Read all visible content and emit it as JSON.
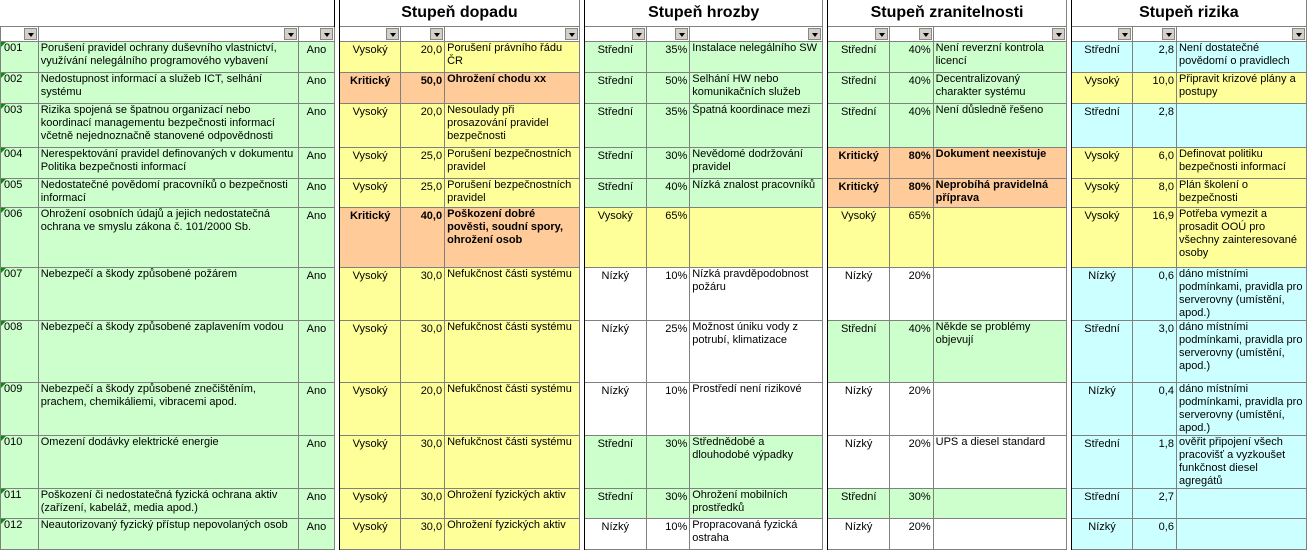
{
  "groups": {
    "dopad": "Stupeň dopadu",
    "hrozba": "Stupeň hrozby",
    "zranitelnost": "Stupeň zranitelnosti",
    "riziko": "Stupeň rizika"
  },
  "colors": {
    "green": "#ccffcc",
    "yellow": "#ffff99",
    "orange": "#ffcc99",
    "white": "#ffffff",
    "cyan": "#ccffff",
    "grid": "#808080",
    "filter_button": "#d4d0c8"
  },
  "rows": [
    {
      "id": "001",
      "name": "Porušení pravidel ochrany duševního vlastnictví, využívání nelegálního programového vybavení",
      "ano": "Ano",
      "dopad": {
        "lvl": "Vysoký",
        "num": "20,0",
        "desc": "Porušení právního řádu ČR"
      },
      "hrozba": {
        "lvl": "Střední",
        "pct": "35%",
        "desc": "Instalace nelegálního SW"
      },
      "zran": {
        "lvl": "Střední",
        "pct": "40%",
        "desc": "Není reverzní kontrola licencí"
      },
      "riziko": {
        "lvl": "Střední",
        "num": "2,8",
        "desc": "Není dostatečné povědomí o pravidlech"
      }
    },
    {
      "id": "002",
      "name": "Nedostupnost informací a služeb ICT, selhání systému",
      "ano": "Ano",
      "dopad": {
        "lvl": "Kritický",
        "num": "50,0",
        "desc": "Ohrožení chodu xx"
      },
      "hrozba": {
        "lvl": "Střední",
        "pct": "50%",
        "desc": "Selhání HW nebo komunikačních služeb"
      },
      "zran": {
        "lvl": "Střední",
        "pct": "40%",
        "desc": "Decentralizovaný charakter systému"
      },
      "riziko": {
        "lvl": "Vysoký",
        "num": "10,0",
        "desc": "Připravit krizové plány a postupy"
      }
    },
    {
      "id": "003",
      "name": "Rizika spojená se špatnou organizací nebo koordinací managementu bezpečnosti informací včetně nejednoznačně stanovené odpovědnosti",
      "ano": "Ano",
      "dopad": {
        "lvl": "Vysoký",
        "num": "20,0",
        "desc": "Nesoulady při prosazování pravidel bezpečnosti"
      },
      "hrozba": {
        "lvl": "Střední",
        "pct": "35%",
        "desc": "Špatná koordinace mezi"
      },
      "zran": {
        "lvl": "Střední",
        "pct": "40%",
        "desc": "Není důsledně řešeno"
      },
      "riziko": {
        "lvl": "Střední",
        "num": "2,8",
        "desc": ""
      }
    },
    {
      "id": "004",
      "name": "Nerespektování pravidel definovaných v dokumentu Politika bezpečnosti informací",
      "ano": "Ano",
      "dopad": {
        "lvl": "Vysoký",
        "num": "25,0",
        "desc": "Porušení bezpečnostních pravidel"
      },
      "hrozba": {
        "lvl": "Střední",
        "pct": "30%",
        "desc": "Nevědomé dodržování pravidel"
      },
      "zran": {
        "lvl": "Kritický",
        "pct": "80%",
        "desc": "Dokument neexistuje"
      },
      "riziko": {
        "lvl": "Vysoký",
        "num": "6,0",
        "desc": "Definovat politiku bezpečnosti informací"
      }
    },
    {
      "id": "005",
      "name": "Nedostatečné povědomí pracovníků o bezpečnosti informací",
      "ano": "Ano",
      "dopad": {
        "lvl": "Vysoký",
        "num": "25,0",
        "desc": "Porušení bezpečnostních pravidel"
      },
      "hrozba": {
        "lvl": "Střední",
        "pct": "40%",
        "desc": "Nízká znalost pracovníků"
      },
      "zran": {
        "lvl": "Kritický",
        "pct": "80%",
        "desc": "Neprobíhá pravidelná příprava"
      },
      "riziko": {
        "lvl": "Vysoký",
        "num": "8,0",
        "desc": "Plán školení o bezpečnosti"
      }
    },
    {
      "id": "006",
      "name": "Ohrožení osobních údajů a jejich nedostatečná ochrana ve smyslu zákona č. 101/2000 Sb.",
      "ano": "Ano",
      "dopad": {
        "lvl": "Kritický",
        "num": "40,0",
        "desc": "Poškození dobré pověsti, soudní spory, ohrožení osob"
      },
      "hrozba": {
        "lvl": "Vysoký",
        "pct": "65%",
        "desc": ""
      },
      "zran": {
        "lvl": "Vysoký",
        "pct": "65%",
        "desc": ""
      },
      "riziko": {
        "lvl": "Vysoký",
        "num": "16,9",
        "desc": "Potřeba vymezit a prosadit OOÚ pro všechny zainteresované osoby"
      }
    },
    {
      "id": "007",
      "name": "Nebezpečí a škody způsobené požárem",
      "ano": "Ano",
      "dopad": {
        "lvl": "Vysoký",
        "num": "30,0",
        "desc": "Nefukčnost části systému"
      },
      "hrozba": {
        "lvl": "Nízký",
        "pct": "10%",
        "desc": "Nízká pravděpodobnost požáru"
      },
      "zran": {
        "lvl": "Nízký",
        "pct": "20%",
        "desc": ""
      },
      "riziko": {
        "lvl": "Nízký",
        "num": "0,6",
        "desc": "dáno místními podmínkami, pravidla pro serverovny (umístění, apod.)"
      }
    },
    {
      "id": "008",
      "name": "Nebezpečí a škody způsobené zaplavením vodou",
      "ano": "Ano",
      "dopad": {
        "lvl": "Vysoký",
        "num": "30,0",
        "desc": "Nefukčnost části systému"
      },
      "hrozba": {
        "lvl": "Nízký",
        "pct": "25%",
        "desc": "Možnost úniku vody z potrubí, klimatizace"
      },
      "zran": {
        "lvl": "Střední",
        "pct": "40%",
        "desc": "Někde se problémy objevují"
      },
      "riziko": {
        "lvl": "Střední",
        "num": "3,0",
        "desc": "dáno místními podmínkami, pravidla pro serverovny (umístění, apod.)"
      }
    },
    {
      "id": "009",
      "name": "Nebezpečí a škody způsobené znečištěním, prachem, chemikáliemi, vibracemi apod.",
      "ano": "Ano",
      "dopad": {
        "lvl": "Vysoký",
        "num": "20,0",
        "desc": "Nefukčnost části systému"
      },
      "hrozba": {
        "lvl": "Nízký",
        "pct": "10%",
        "desc": "Prostředí není rizikové"
      },
      "zran": {
        "lvl": "Nízký",
        "pct": "20%",
        "desc": ""
      },
      "riziko": {
        "lvl": "Nízký",
        "num": "0,4",
        "desc": "dáno místními podmínkami, pravidla pro serverovny (umístění, apod.)"
      }
    },
    {
      "id": "010",
      "name": "Omezení dodávky elektrické energie",
      "ano": "Ano",
      "dopad": {
        "lvl": "Vysoký",
        "num": "30,0",
        "desc": "Nefukčnost části systému"
      },
      "hrozba": {
        "lvl": "Střední",
        "pct": "30%",
        "desc": "Střednědobé a dlouhodobé výpadky"
      },
      "zran": {
        "lvl": "Nízký",
        "pct": "20%",
        "desc": "UPS a diesel standard"
      },
      "riziko": {
        "lvl": "Střední",
        "num": "1,8",
        "desc": "ověřit připojení všech pracovišť a vyzkoušet funkčnost diesel agregátů"
      }
    },
    {
      "id": "011",
      "name": "Poškození či nedostatečná fyzická ochrana aktiv (zařízení, kabeláž, media apod.)",
      "ano": "Ano",
      "dopad": {
        "lvl": "Vysoký",
        "num": "30,0",
        "desc": "Ohrožení fyzických aktiv"
      },
      "hrozba": {
        "lvl": "Střední",
        "pct": "30%",
        "desc": "Ohrožení mobilních prostředků"
      },
      "zran": {
        "lvl": "Střední",
        "pct": "30%",
        "desc": ""
      },
      "riziko": {
        "lvl": "Střední",
        "num": "2,7",
        "desc": ""
      }
    },
    {
      "id": "012",
      "name": "Neautorizovaný fyzický přístup nepovolaných osob",
      "ano": "Ano",
      "dopad": {
        "lvl": "Vysoký",
        "num": "30,0",
        "desc": "Ohrožení fyzických aktiv"
      },
      "hrozba": {
        "lvl": "Nízký",
        "pct": "10%",
        "desc": "Propracovaná fyzická ostraha"
      },
      "zran": {
        "lvl": "Nízký",
        "pct": "20%",
        "desc": ""
      },
      "riziko": {
        "lvl": "Nízký",
        "num": "0,6",
        "desc": ""
      }
    }
  ]
}
